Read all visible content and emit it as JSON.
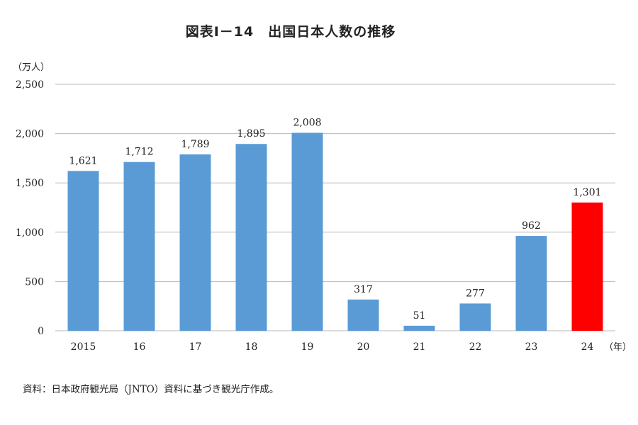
{
  "chart_data": {
    "type": "bar",
    "title": "図表Ⅰ－14　出国日本人数の推移",
    "ylabel": "（万人）",
    "xlabel": "（年）",
    "categories": [
      "2015",
      "16",
      "17",
      "18",
      "19",
      "20",
      "21",
      "22",
      "23",
      "24"
    ],
    "values": [
      1621,
      1712,
      1789,
      1895,
      2008,
      317,
      51,
      277,
      962,
      1301
    ],
    "data_labels": [
      "1,621",
      "1,712",
      "1,789",
      "1,895",
      "2,008",
      "317",
      "51",
      "277",
      "962",
      "1,301"
    ],
    "ylim": [
      0,
      2500
    ],
    "yticks": [
      0,
      500,
      1000,
      1500,
      2000,
      2500
    ],
    "ytick_labels": [
      "0",
      "500",
      "1,000",
      "1,500",
      "2,000",
      "2,500"
    ],
    "grid": true,
    "legend": "none",
    "colors": {
      "bar": "#5b9bd5",
      "highlight": "#ff0000",
      "highlight_index": 9
    }
  },
  "source": "資料：日本政府観光局（JNTO）資料に基づき観光庁作成。"
}
